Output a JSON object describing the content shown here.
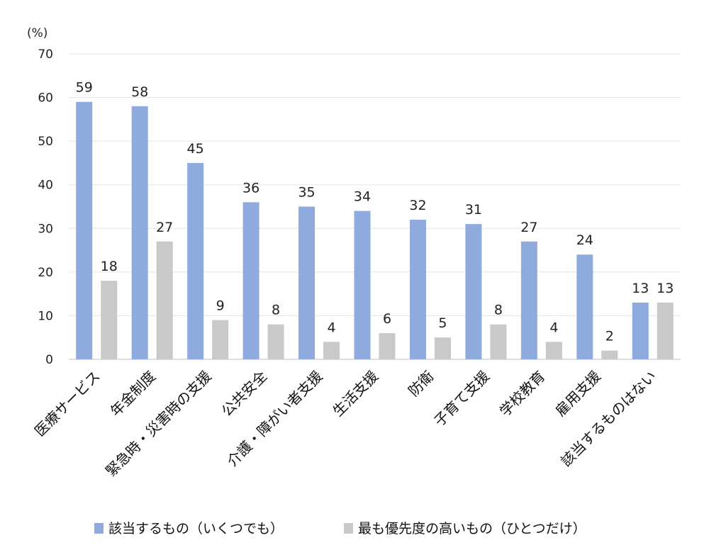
{
  "chart_data": {
    "type": "bar",
    "unit_label": "(%)",
    "ylim": [
      0,
      70
    ],
    "yticks": [
      0,
      10,
      20,
      30,
      40,
      50,
      60,
      70
    ],
    "grid": true,
    "legend_placement": "bottom",
    "categories": [
      "医療サービス",
      "年金制度",
      "緊急時・災害時の支援",
      "公共安全",
      "介護・障がい者支援",
      "生活支援",
      "防衛",
      "子育て支援",
      "学校教育",
      "雇用支援",
      "該当するものはない"
    ],
    "series": [
      {
        "name": "該当するもの（いくつでも）",
        "color": "#8faadc",
        "values": [
          59,
          58,
          45,
          36,
          35,
          34,
          32,
          31,
          27,
          24,
          13
        ]
      },
      {
        "name": "最も優先度の高いもの（ひとつだけ）",
        "color": "#c9c9c9",
        "values": [
          18,
          27,
          9,
          8,
          4,
          6,
          5,
          8,
          4,
          2,
          13
        ]
      }
    ]
  }
}
